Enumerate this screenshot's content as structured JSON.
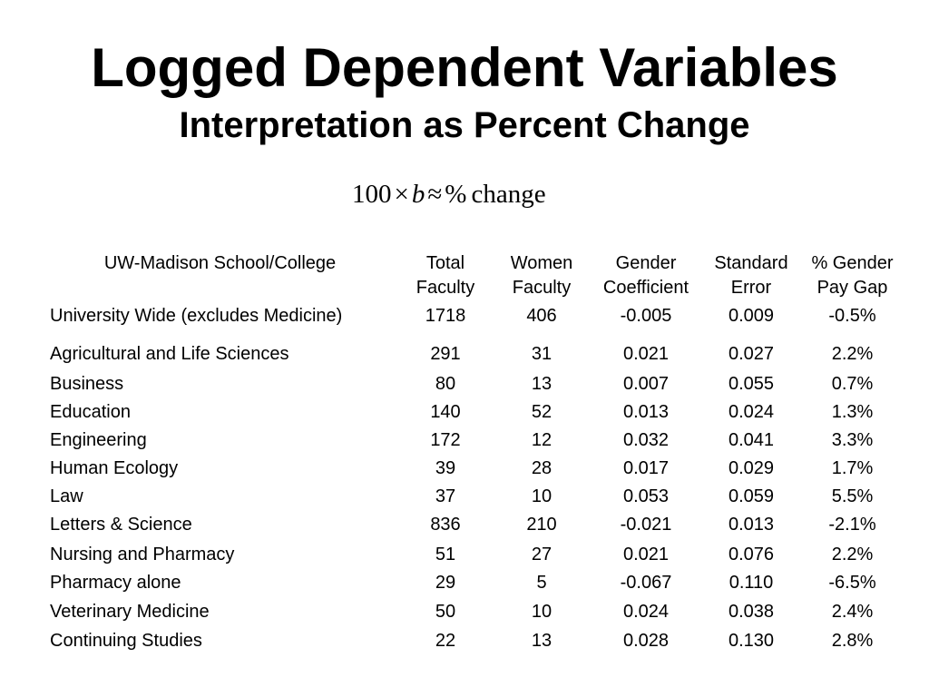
{
  "title": "Logged Dependent Variables",
  "subtitle": "Interpretation as Percent Change",
  "formula": {
    "coef": "100",
    "times": "×",
    "var": "b",
    "approx": "≈",
    "pct": "%",
    "word": "change"
  },
  "table": {
    "headers": [
      [
        "UW-Madison School/College"
      ],
      [
        "Total",
        "Faculty"
      ],
      [
        "Women",
        "Faculty"
      ],
      [
        "Gender",
        "Coefficient"
      ],
      [
        "Standard",
        "Error"
      ],
      [
        "% Gender",
        "Pay Gap"
      ]
    ],
    "rows": [
      [
        "University Wide (excludes Medicine)",
        "1718",
        "406",
        "-0.005",
        "0.009",
        "-0.5%"
      ],
      [
        "Agricultural and Life Sciences",
        "291",
        "31",
        "0.021",
        "0.027",
        "2.2%"
      ],
      [
        "Business",
        "80",
        "13",
        "0.007",
        "0.055",
        "0.7%"
      ],
      [
        "Education",
        "140",
        "52",
        "0.013",
        "0.024",
        "1.3%"
      ],
      [
        "Engineering",
        "172",
        "12",
        "0.032",
        "0.041",
        "3.3%"
      ],
      [
        "Human Ecology",
        "39",
        "28",
        "0.017",
        "0.029",
        "1.7%"
      ],
      [
        "Law",
        "37",
        "10",
        "0.053",
        "0.059",
        "5.5%"
      ],
      [
        "Letters & Science",
        "836",
        "210",
        "-0.021",
        "0.013",
        "-2.1%"
      ],
      [
        "Nursing and Pharmacy",
        "51",
        "27",
        "0.021",
        "0.076",
        "2.2%"
      ],
      [
        "Pharmacy alone",
        "29",
        "5",
        "-0.067",
        "0.110",
        "-6.5%"
      ],
      [
        "Veterinary Medicine",
        "50",
        "10",
        "0.024",
        "0.038",
        "2.4%"
      ],
      [
        "Continuing Studies",
        "22",
        "13",
        "0.028",
        "0.130",
        "2.8%"
      ]
    ]
  }
}
